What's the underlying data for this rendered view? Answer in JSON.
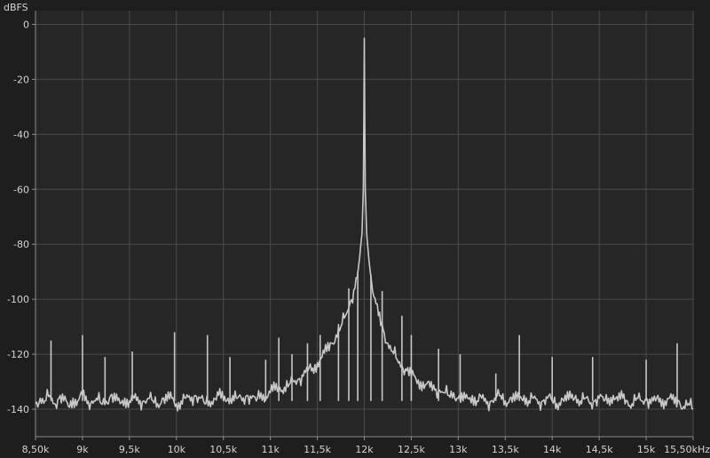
{
  "chart_data": {
    "type": "line",
    "title": "",
    "ylabel": "dBFS",
    "xlabel": "",
    "x_unit": "Hz",
    "xlim": [
      8500,
      15500
    ],
    "ylim": [
      -150,
      5
    ],
    "grid": true,
    "legend": "none",
    "colors": {
      "background": "#1e1e1e",
      "plot_background": "#262626",
      "grid": "#4a4a4a",
      "axis": "#8c8c8c",
      "trace": "#c8c8c8",
      "text": "#d4d4d4"
    },
    "x_ticks": [
      {
        "value": 8500,
        "label": "8,50k"
      },
      {
        "value": 9000,
        "label": "9k"
      },
      {
        "value": 9500,
        "label": "9,5k"
      },
      {
        "value": 10000,
        "label": "10k"
      },
      {
        "value": 10500,
        "label": "10,5k"
      },
      {
        "value": 11000,
        "label": "11k"
      },
      {
        "value": 11500,
        "label": "11,5k"
      },
      {
        "value": 12000,
        "label": "12k"
      },
      {
        "value": 12500,
        "label": "12,5k"
      },
      {
        "value": 13000,
        "label": "13k"
      },
      {
        "value": 13500,
        "label": "13,5k"
      },
      {
        "value": 14000,
        "label": "14k"
      },
      {
        "value": 14500,
        "label": "14,5k"
      },
      {
        "value": 15000,
        "label": "15k"
      },
      {
        "value": 15500,
        "label": "15,50kHz"
      }
    ],
    "y_ticks": [
      {
        "value": 0,
        "label": "0"
      },
      {
        "value": -20,
        "label": "-20"
      },
      {
        "value": -40,
        "label": "-40"
      },
      {
        "value": -60,
        "label": "-60"
      },
      {
        "value": -80,
        "label": "-80"
      },
      {
        "value": -100,
        "label": "-100"
      },
      {
        "value": -120,
        "label": "-120"
      },
      {
        "value": -140,
        "label": "-140"
      }
    ],
    "series": [
      {
        "color": "#c8c8c8",
        "x": [
          8500,
          8550,
          8600,
          8650,
          8700,
          8750,
          8800,
          8850,
          8900,
          8950,
          9000,
          9050,
          9100,
          9150,
          9200,
          9250,
          9300,
          9350,
          9400,
          9450,
          9500,
          9550,
          9600,
          9650,
          9700,
          9750,
          9800,
          9850,
          9900,
          9950,
          10000,
          10050,
          10100,
          10150,
          10200,
          10250,
          10300,
          10350,
          10400,
          10450,
          10500,
          10550,
          10600,
          10650,
          10700,
          10750,
          10800,
          10850,
          10900,
          10950,
          11000,
          11050,
          11100,
          11150,
          11200,
          11250,
          11300,
          11350,
          11400,
          11450,
          11500,
          11550,
          11600,
          11650,
          11700,
          11750,
          11800,
          11850,
          11900,
          11925,
          11950,
          11975,
          11990,
          12000,
          12010,
          12025,
          12050,
          12075,
          12100,
          12150,
          12200,
          12250,
          12300,
          12350,
          12400,
          12450,
          12500,
          12550,
          12600,
          12650,
          12700,
          12750,
          12800,
          12850,
          12900,
          12950,
          13000,
          13050,
          13100,
          13150,
          13200,
          13250,
          13300,
          13350,
          13400,
          13450,
          13500,
          13550,
          13600,
          13650,
          13700,
          13750,
          13800,
          13850,
          13900,
          13950,
          14000,
          14050,
          14100,
          14150,
          14200,
          14250,
          14300,
          14350,
          14400,
          14450,
          14500,
          14550,
          14600,
          14650,
          14700,
          14750,
          14800,
          14850,
          14900,
          14950,
          15000,
          15050,
          15100,
          15150,
          15200,
          15250,
          15300,
          15350,
          15400,
          15450,
          15500
        ],
        "y": [
          -138,
          -136,
          -137,
          -135,
          -138,
          -136,
          -137,
          -139,
          -136,
          -137,
          -135,
          -138,
          -137,
          -136,
          -138,
          -137,
          -135,
          -137,
          -138,
          -136,
          -137,
          -136,
          -138,
          -137,
          -136,
          -137,
          -138,
          -136,
          -137,
          -136,
          -138,
          -137,
          -136,
          -137,
          -135,
          -136,
          -138,
          -137,
          -136,
          -135,
          -137,
          -136,
          -135,
          -136,
          -137,
          -135,
          -136,
          -137,
          -134,
          -135,
          -134,
          -133,
          -132,
          -132,
          -131,
          -130,
          -129,
          -128,
          -126,
          -125,
          -123,
          -121,
          -119,
          -116,
          -113,
          -110,
          -106,
          -101,
          -96,
          -92,
          -85,
          -76,
          -60,
          -5,
          -60,
          -76,
          -86,
          -93,
          -99,
          -106,
          -111,
          -116,
          -119,
          -122,
          -124,
          -126,
          -128,
          -129,
          -130,
          -131,
          -132,
          -133,
          -133,
          -134,
          -135,
          -134,
          -136,
          -137,
          -136,
          -135,
          -137,
          -136,
          -138,
          -137,
          -136,
          -135,
          -137,
          -136,
          -137,
          -136,
          -135,
          -137,
          -136,
          -138,
          -137,
          -136,
          -137,
          -138,
          -136,
          -137,
          -136,
          -135,
          -137,
          -136,
          -138,
          -137,
          -136,
          -137,
          -136,
          -135,
          -137,
          -136,
          -137,
          -138,
          -136,
          -137,
          -136,
          -138,
          -137,
          -136,
          -137,
          -136,
          -138,
          -137,
          -139,
          -138,
          -140
        ]
      }
    ],
    "spurs": [
      {
        "x": 8665,
        "y": -115
      },
      {
        "x": 9000,
        "y": -113
      },
      {
        "x": 9240,
        "y": -121
      },
      {
        "x": 9530,
        "y": -119
      },
      {
        "x": 9980,
        "y": -112
      },
      {
        "x": 10330,
        "y": -113
      },
      {
        "x": 10570,
        "y": -121
      },
      {
        "x": 10950,
        "y": -122
      },
      {
        "x": 11090,
        "y": -114
      },
      {
        "x": 11230,
        "y": -120
      },
      {
        "x": 11395,
        "y": -116
      },
      {
        "x": 11530,
        "y": -113
      },
      {
        "x": 11725,
        "y": -109
      },
      {
        "x": 11835,
        "y": -96
      },
      {
        "x": 11930,
        "y": -90
      },
      {
        "x": 12070,
        "y": -91
      },
      {
        "x": 12190,
        "y": -97
      },
      {
        "x": 12400,
        "y": -106
      },
      {
        "x": 12500,
        "y": -113
      },
      {
        "x": 12790,
        "y": -118
      },
      {
        "x": 13020,
        "y": -120
      },
      {
        "x": 13400,
        "y": -127
      },
      {
        "x": 13650,
        "y": -113
      },
      {
        "x": 14000,
        "y": -121
      },
      {
        "x": 14430,
        "y": -121
      },
      {
        "x": 15000,
        "y": -122
      },
      {
        "x": 15330,
        "y": -116
      }
    ]
  }
}
